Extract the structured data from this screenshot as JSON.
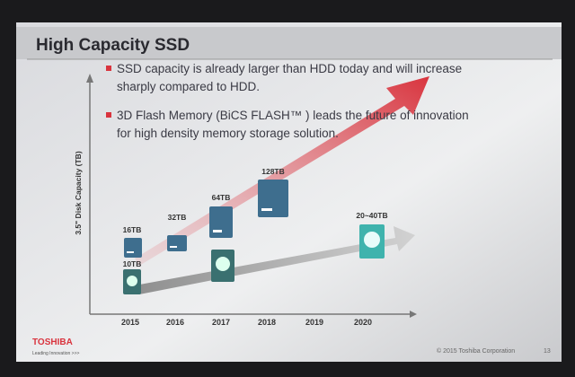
{
  "header": {
    "title": "High Capacity SSD"
  },
  "bullets": [
    {
      "lines": [
        "SSD capacity is already larger than HDD today and will increase",
        "sharply compared to HDD."
      ]
    },
    {
      "lines": [
        "3D Flash Memory (BiCS FLASH™ ) leads the future of innovation",
        "for high density memory storage solution."
      ]
    }
  ],
  "chart": {
    "y_axis_label": "3.5\" Disk Capacity (TB)",
    "years": [
      "2015",
      "2016",
      "2017",
      "2018",
      "2019",
      "2020"
    ],
    "ssd_labels": [
      "16TB",
      "32TB",
      "64TB",
      "128TB"
    ],
    "hdd_labels": [
      "10TB",
      "20~40TB"
    ]
  },
  "footer": {
    "brand": "TOSHIBA",
    "tagline": "Leading Innovation >>>",
    "copyright": "© 2015 Toshiba Corporation",
    "page": "13"
  }
}
